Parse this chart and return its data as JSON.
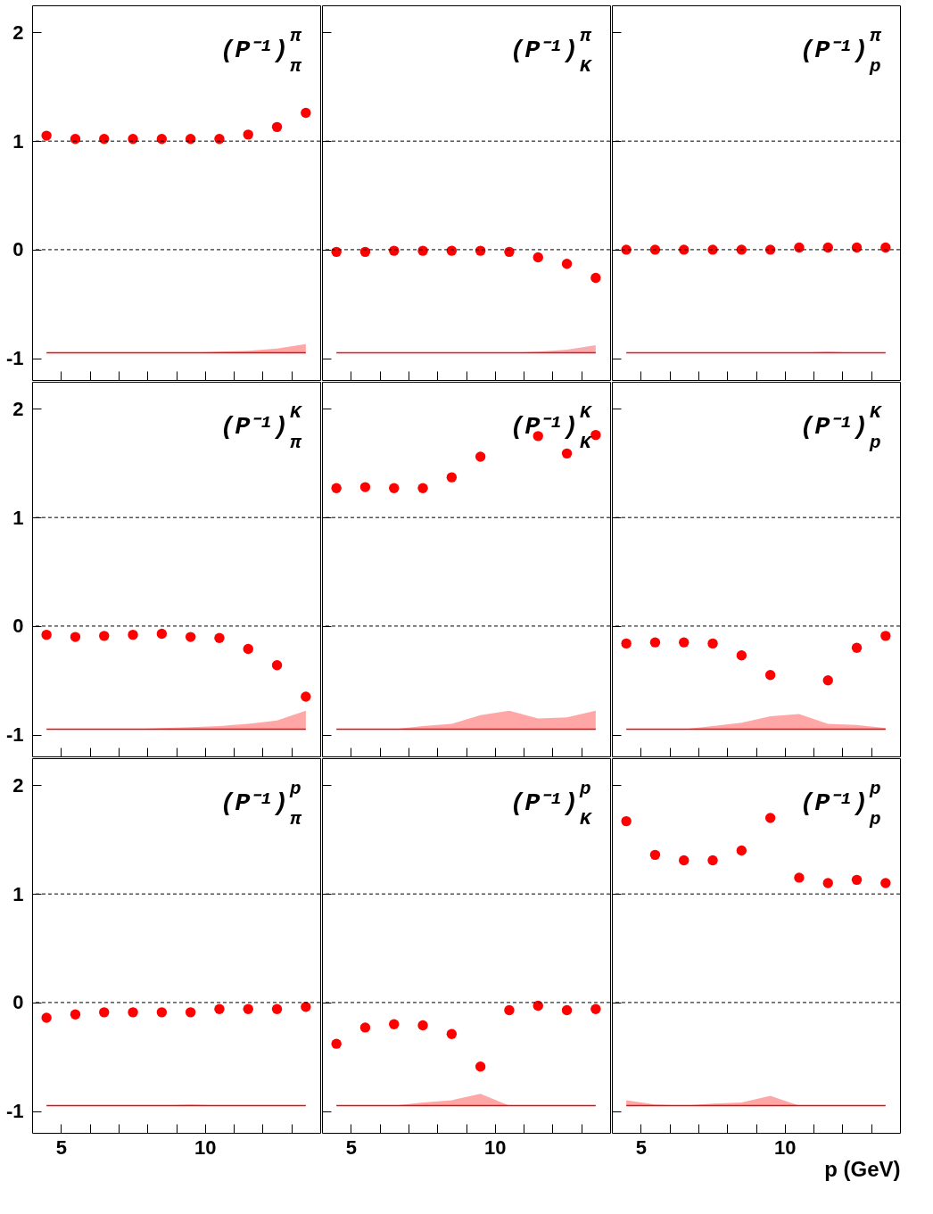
{
  "chart_data": [
    {
      "type": "scatter",
      "title": "(P⁻¹)$^{π}$$_{π}$",
      "x": [
        4.5,
        5.5,
        6.5,
        7.5,
        8.5,
        9.5,
        10.5,
        11.5,
        12.5,
        13.5
      ],
      "marker": "circle",
      "tick_labels": "y",
      "series": [
        {
          "type": "scatter",
          "color": "#ff0000",
          "values": [
            1.05,
            1.02,
            1.02,
            1.02,
            1.02,
            1.02,
            1.02,
            1.06,
            1.13,
            1.26
          ]
        },
        {
          "type": "line",
          "marker": "none",
          "color": "#ff0000",
          "values": [
            -0.95,
            -0.95,
            -0.95,
            -0.95,
            -0.95,
            -0.95,
            -0.95,
            -0.95,
            -0.95,
            -0.95
          ],
          "lower": [
            -0.95,
            -0.95,
            -0.95,
            -0.95,
            -0.95,
            -0.95,
            -0.95,
            -0.95,
            -0.95,
            -0.95
          ],
          "upper": [
            -0.95,
            -0.95,
            -0.95,
            -0.95,
            -0.95,
            -0.95,
            -0.94,
            -0.93,
            -0.91,
            -0.87
          ]
        }
      ],
      "xlim": [
        4,
        14
      ],
      "ylim": [
        -1.2,
        2.25
      ],
      "xticks": [
        5,
        {
          "value": 6,
          "label": null
        },
        {
          "value": 7,
          "label": null
        },
        {
          "value": 8,
          "label": null
        },
        {
          "value": 9,
          "label": null
        },
        10,
        {
          "value": 11,
          "label": null
        },
        {
          "value": 12,
          "label": null
        },
        {
          "value": 13,
          "label": null
        }
      ],
      "yticks": [
        -1,
        0,
        1,
        2
      ],
      "ref_lines": [
        {
          "axis": "y",
          "value": 0,
          "line_style": "dashed"
        },
        {
          "axis": "y",
          "value": 1,
          "line_style": "dashed"
        }
      ]
    },
    {
      "type": "scatter",
      "title": "(P⁻¹)$^{π}$$_{K}$",
      "x": [
        4.5,
        5.5,
        6.5,
        7.5,
        8.5,
        9.5,
        10.5,
        11.5,
        12.5,
        13.5
      ],
      "marker": "circle",
      "tick_labels": false,
      "series": [
        {
          "type": "scatter",
          "color": "#ff0000",
          "values": [
            -0.02,
            -0.02,
            -0.01,
            -0.01,
            -0.01,
            -0.01,
            -0.02,
            -0.07,
            -0.13,
            -0.26
          ]
        },
        {
          "type": "line",
          "marker": "none",
          "color": "#e8101a",
          "values": [
            -0.95,
            -0.95,
            -0.95,
            -0.95,
            -0.95,
            -0.95,
            -0.95,
            -0.95,
            -0.95,
            -0.95
          ],
          "lower": [
            -0.95,
            -0.95,
            -0.95,
            -0.95,
            -0.95,
            -0.95,
            -0.95,
            -0.95,
            -0.95,
            -0.95
          ],
          "upper": [
            -0.95,
            -0.95,
            -0.95,
            -0.95,
            -0.95,
            -0.95,
            -0.95,
            -0.94,
            -0.92,
            -0.88
          ]
        }
      ],
      "xlim": [
        4,
        14
      ],
      "ylim": [
        -1.2,
        2.25
      ],
      "xticks": [
        5,
        {
          "value": 6,
          "label": null
        },
        {
          "value": 7,
          "label": null
        },
        {
          "value": 8,
          "label": null
        },
        {
          "value": 9,
          "label": null
        },
        10,
        {
          "value": 11,
          "label": null
        },
        {
          "value": 12,
          "label": null
        },
        {
          "value": 13,
          "label": null
        }
      ],
      "yticks": [
        -1,
        0,
        1,
        2
      ],
      "ref_lines": [
        {
          "axis": "y",
          "value": 0,
          "line_style": "dashed"
        },
        {
          "axis": "y",
          "value": 1,
          "line_style": "dashed"
        }
      ]
    },
    {
      "type": "scatter",
      "title": "(P⁻¹)$^{π}$$_{p}$",
      "x": [
        4.5,
        5.5,
        6.5,
        7.5,
        8.5,
        9.5,
        10.5,
        11.5,
        12.5,
        13.5
      ],
      "marker": "circle",
      "tick_labels": false,
      "series": [
        {
          "type": "scatter",
          "color": "#ff0000",
          "values": [
            0,
            0,
            0,
            0,
            0,
            0,
            0.02,
            0.02,
            0.02,
            0.02
          ]
        },
        {
          "type": "line",
          "marker": "none",
          "color": "#e8101a",
          "values": [
            -0.95,
            -0.95,
            -0.95,
            -0.95,
            -0.95,
            -0.95,
            -0.95,
            -0.95,
            -0.95,
            -0.95
          ],
          "lower": [
            -0.95,
            -0.95,
            -0.95,
            -0.95,
            -0.95,
            -0.95,
            -0.95,
            -0.95,
            -0.95,
            -0.95
          ],
          "upper": [
            -0.95,
            -0.95,
            -0.95,
            -0.95,
            -0.95,
            -0.95,
            -0.95,
            -0.94,
            -0.95,
            -0.95
          ]
        }
      ],
      "xlim": [
        4,
        14
      ],
      "ylim": [
        -1.2,
        2.25
      ],
      "xticks": [
        5,
        {
          "value": 6,
          "label": null
        },
        {
          "value": 7,
          "label": null
        },
        {
          "value": 8,
          "label": null
        },
        {
          "value": 9,
          "label": null
        },
        10,
        {
          "value": 11,
          "label": null
        },
        {
          "value": 12,
          "label": null
        },
        {
          "value": 13,
          "label": null
        }
      ],
      "yticks": [
        -1,
        0,
        1,
        2
      ],
      "ref_lines": [
        {
          "axis": "y",
          "value": 0,
          "line_style": "dashed"
        },
        {
          "axis": "y",
          "value": 1,
          "line_style": "dashed"
        }
      ]
    },
    {
      "type": "scatter",
      "title": "(P⁻¹)$^{K}$$_{π}$",
      "x": [
        4.5,
        5.5,
        6.5,
        7.5,
        8.5,
        9.5,
        10.5,
        11.5,
        12.5,
        13.5
      ],
      "marker": "circle",
      "tick_labels": "y",
      "series": [
        {
          "type": "scatter",
          "color": "#ff0000",
          "values": [
            -0.08,
            -0.1,
            -0.09,
            -0.08,
            -0.07,
            -0.1,
            -0.11,
            -0.21,
            -0.36,
            -0.65
          ]
        },
        {
          "type": "line",
          "marker": "none",
          "color": "#ff0000",
          "values": [
            -0.95,
            -0.95,
            -0.95,
            -0.95,
            -0.95,
            -0.95,
            -0.95,
            -0.95,
            -0.95,
            -0.95
          ],
          "lower": [
            -0.95,
            -0.95,
            -0.95,
            -0.95,
            -0.95,
            -0.95,
            -0.95,
            -0.95,
            -0.95,
            -0.95
          ],
          "upper": [
            -0.95,
            -0.95,
            -0.95,
            -0.95,
            -0.94,
            -0.93,
            -0.92,
            -0.9,
            -0.87,
            -0.78
          ]
        }
      ],
      "xlim": [
        4,
        14
      ],
      "ylim": [
        -1.2,
        2.25
      ],
      "xticks": [
        5,
        {
          "value": 6,
          "label": null
        },
        {
          "value": 7,
          "label": null
        },
        {
          "value": 8,
          "label": null
        },
        {
          "value": 9,
          "label": null
        },
        10,
        {
          "value": 11,
          "label": null
        },
        {
          "value": 12,
          "label": null
        },
        {
          "value": 13,
          "label": null
        }
      ],
      "yticks": [
        -1,
        0,
        1,
        2
      ],
      "ref_lines": [
        {
          "axis": "y",
          "value": 0,
          "line_style": "dashed"
        },
        {
          "axis": "y",
          "value": 1,
          "line_style": "dashed"
        }
      ]
    },
    {
      "type": "scatter",
      "title": "(P⁻¹)$^{K}$$_{K}$",
      "x": [
        4.5,
        5.5,
        6.5,
        7.5,
        8.5,
        9.5,
        10.5,
        11.5,
        12.5,
        13.5
      ],
      "marker": "circle",
      "tick_labels": false,
      "series": [
        {
          "type": "scatter",
          "color": "#ff0000",
          "values": [
            1.27,
            1.28,
            1.27,
            1.27,
            1.37,
            1.56,
            null,
            1.75,
            1.59,
            1.76
          ]
        },
        {
          "type": "line",
          "marker": "none",
          "color": "#ff0000",
          "values": [
            -0.95,
            -0.95,
            -0.95,
            -0.95,
            -0.95,
            -0.95,
            -0.95,
            -0.95,
            -0.95,
            -0.95
          ],
          "lower": [
            -0.95,
            -0.95,
            -0.95,
            -0.95,
            -0.95,
            -0.95,
            -0.95,
            -0.95,
            -0.95,
            -0.95
          ],
          "upper": [
            -0.95,
            -0.95,
            -0.95,
            -0.92,
            -0.9,
            -0.82,
            -0.78,
            -0.85,
            -0.84,
            -0.78
          ]
        }
      ],
      "xlim": [
        4,
        14
      ],
      "ylim": [
        -1.2,
        2.25
      ],
      "xticks": [
        5,
        {
          "value": 6,
          "label": null
        },
        {
          "value": 7,
          "label": null
        },
        {
          "value": 8,
          "label": null
        },
        {
          "value": 9,
          "label": null
        },
        10,
        {
          "value": 11,
          "label": null
        },
        {
          "value": 12,
          "label": null
        },
        {
          "value": 13,
          "label": null
        }
      ],
      "yticks": [
        -1,
        0,
        1,
        2
      ],
      "ref_lines": [
        {
          "axis": "y",
          "value": 0,
          "line_style": "dashed"
        },
        {
          "axis": "y",
          "value": 1,
          "line_style": "dashed"
        }
      ]
    },
    {
      "type": "scatter",
      "title": "(P⁻¹)$^{K}$$_{p}$",
      "x": [
        4.5,
        5.5,
        6.5,
        7.5,
        8.5,
        9.5,
        10.5,
        11.5,
        12.5,
        13.5
      ],
      "marker": "circle",
      "tick_labels": false,
      "series": [
        {
          "type": "scatter",
          "color": "#ff0000",
          "values": [
            -0.16,
            -0.15,
            -0.15,
            -0.16,
            -0.27,
            -0.45,
            null,
            -0.5,
            -0.2,
            -0.09
          ]
        },
        {
          "type": "line",
          "marker": "none",
          "color": "#ff0000",
          "values": [
            -0.95,
            -0.95,
            -0.95,
            -0.95,
            -0.95,
            -0.95,
            -0.95,
            -0.95,
            -0.95,
            -0.95
          ],
          "lower": [
            -0.95,
            -0.95,
            -0.95,
            -0.95,
            -0.95,
            -0.95,
            -0.95,
            -0.95,
            -0.95,
            -0.95
          ],
          "upper": [
            -0.95,
            -0.95,
            -0.95,
            -0.92,
            -0.89,
            -0.83,
            -0.81,
            -0.9,
            -0.91,
            -0.94
          ]
        }
      ],
      "xlim": [
        4,
        14
      ],
      "ylim": [
        -1.2,
        2.25
      ],
      "xticks": [
        5,
        {
          "value": 6,
          "label": null
        },
        {
          "value": 7,
          "label": null
        },
        {
          "value": 8,
          "label": null
        },
        {
          "value": 9,
          "label": null
        },
        10,
        {
          "value": 11,
          "label": null
        },
        {
          "value": 12,
          "label": null
        },
        {
          "value": 13,
          "label": null
        }
      ],
      "yticks": [
        -1,
        0,
        1,
        2
      ],
      "ref_lines": [
        {
          "axis": "y",
          "value": 0,
          "line_style": "dashed"
        },
        {
          "axis": "y",
          "value": 1,
          "line_style": "dashed"
        }
      ]
    },
    {
      "type": "scatter",
      "title": "(P⁻¹)$^{p}$$_{π}$",
      "x": [
        4.5,
        5.5,
        6.5,
        7.5,
        8.5,
        9.5,
        10.5,
        11.5,
        12.5,
        13.5
      ],
      "marker": "circle",
      "series": [
        {
          "type": "scatter",
          "color": "#ff0000",
          "values": [
            -0.14,
            -0.11,
            -0.09,
            -0.09,
            -0.09,
            -0.09,
            -0.06,
            -0.06,
            -0.06,
            -0.04
          ]
        },
        {
          "type": "line",
          "marker": "none",
          "color": "#ff0000",
          "values": [
            -0.95,
            -0.95,
            -0.95,
            -0.95,
            -0.95,
            -0.95,
            -0.95,
            -0.95,
            -0.95,
            -0.95
          ],
          "lower": [
            -0.95,
            -0.95,
            -0.95,
            -0.95,
            -0.95,
            -0.95,
            -0.95,
            -0.95,
            -0.95,
            -0.95
          ],
          "upper": [
            -0.95,
            -0.95,
            -0.95,
            -0.95,
            -0.95,
            -0.94,
            -0.95,
            -0.95,
            -0.95,
            -0.95
          ]
        }
      ],
      "xlim": [
        4,
        14
      ],
      "ylim": [
        -1.2,
        2.25
      ],
      "xticks": [
        5,
        {
          "value": 6,
          "label": null
        },
        {
          "value": 7,
          "label": null
        },
        {
          "value": 8,
          "label": null
        },
        {
          "value": 9,
          "label": null
        },
        10,
        {
          "value": 11,
          "label": null
        },
        {
          "value": 12,
          "label": null
        },
        {
          "value": 13,
          "label": null
        }
      ],
      "yticks": [
        -1,
        0,
        1,
        2
      ],
      "ref_lines": [
        {
          "axis": "y",
          "value": 0,
          "line_style": "dashed"
        },
        {
          "axis": "y",
          "value": 1,
          "line_style": "dashed"
        }
      ]
    },
    {
      "type": "scatter",
      "title": "(P⁻¹)$^{p}$$_{K}$",
      "x": [
        4.5,
        5.5,
        6.5,
        7.5,
        8.5,
        9.5,
        10.5,
        11.5,
        12.5,
        13.5
      ],
      "marker": "circle",
      "tick_labels": "x",
      "series": [
        {
          "type": "scatter",
          "color": "#ff0000",
          "values": [
            -0.38,
            -0.23,
            -0.2,
            -0.21,
            -0.29,
            -0.59,
            -0.07,
            -0.03,
            -0.07,
            -0.06
          ]
        },
        {
          "type": "line",
          "marker": "none",
          "color": "#ff0000",
          "values": [
            -0.95,
            -0.95,
            -0.95,
            -0.95,
            -0.95,
            -0.95,
            -0.95,
            -0.95,
            -0.95,
            -0.95
          ],
          "lower": [
            -0.95,
            -0.95,
            -0.95,
            -0.95,
            -0.95,
            -0.95,
            -0.95,
            -0.95,
            -0.95,
            -0.95
          ],
          "upper": [
            -0.95,
            -0.95,
            -0.95,
            -0.92,
            -0.9,
            -0.84,
            -0.95,
            -0.95,
            -0.95,
            -0.95
          ]
        }
      ],
      "xlim": [
        4,
        14
      ],
      "ylim": [
        -1.2,
        2.25
      ],
      "xticks": [
        5,
        {
          "value": 6,
          "label": null
        },
        {
          "value": 7,
          "label": null
        },
        {
          "value": 8,
          "label": null
        },
        {
          "value": 9,
          "label": null
        },
        10,
        {
          "value": 11,
          "label": null
        },
        {
          "value": 12,
          "label": null
        },
        {
          "value": 13,
          "label": null
        }
      ],
      "yticks": [
        -1,
        0,
        1,
        2
      ],
      "ref_lines": [
        {
          "axis": "y",
          "value": 0,
          "line_style": "dashed"
        },
        {
          "axis": "y",
          "value": 1,
          "line_style": "dashed"
        }
      ]
    },
    {
      "type": "scatter",
      "title": "(P⁻¹)$^{p}$$_{p}$",
      "xlabel": "p (GeV)",
      "x": [
        4.5,
        5.5,
        6.5,
        7.5,
        8.5,
        9.5,
        10.5,
        11.5,
        12.5,
        13.5
      ],
      "marker": "circle",
      "tick_labels": "x",
      "series": [
        {
          "type": "scatter",
          "color": "#ff0000",
          "values": [
            1.67,
            1.36,
            1.31,
            1.31,
            1.4,
            1.7,
            1.15,
            1.1,
            1.13,
            1.1
          ]
        },
        {
          "type": "line",
          "marker": "none",
          "color": "#ff0000",
          "values": [
            -0.95,
            -0.95,
            -0.95,
            -0.95,
            -0.95,
            -0.95,
            -0.95,
            -0.95,
            -0.95,
            -0.95
          ],
          "lower": [
            -0.95,
            -0.95,
            -0.95,
            -0.95,
            -0.95,
            -0.95,
            -0.95,
            -0.95,
            -0.95,
            -0.95
          ],
          "upper": [
            -0.9,
            -0.94,
            -0.95,
            -0.93,
            -0.92,
            -0.86,
            -0.95,
            -0.95,
            -0.95,
            -0.95
          ]
        }
      ],
      "xlim": [
        4,
        14
      ],
      "ylim": [
        -1.2,
        2.25
      ],
      "xticks": [
        5,
        {
          "value": 6,
          "label": null
        },
        {
          "value": 7,
          "label": null
        },
        {
          "value": 8,
          "label": null
        },
        {
          "value": 9,
          "label": null
        },
        10,
        {
          "value": 11,
          "label": null
        },
        {
          "value": 12,
          "label": null
        },
        {
          "value": 13,
          "label": null
        }
      ],
      "yticks": [
        -1,
        0,
        1,
        2
      ],
      "ref_lines": [
        {
          "axis": "y",
          "value": 0,
          "line_style": "dashed"
        },
        {
          "axis": "y",
          "value": 1,
          "line_style": "dashed"
        }
      ]
    }
  ]
}
